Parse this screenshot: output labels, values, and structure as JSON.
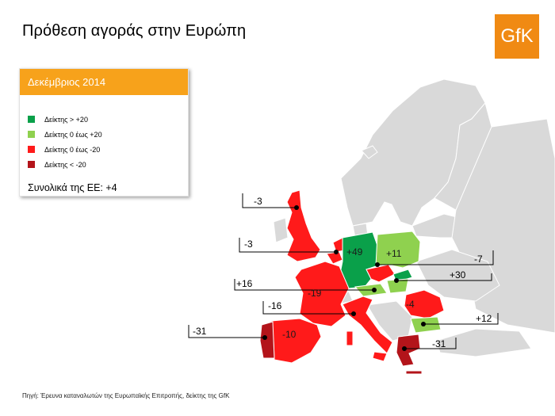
{
  "title": "Πρόθεση αγοράς στην Ευρώπη",
  "logo": "GfK",
  "panel": {
    "heading": "Δεκέμβριος 2014",
    "legend": [
      {
        "label": "Δείκτης  > +20",
        "color": "#0aa04a"
      },
      {
        "label": "Δείκτης  0 έως +20",
        "color": "#8fd14f"
      },
      {
        "label": "Δείκτης  0 έως -20",
        "color": "#ff1a1a"
      },
      {
        "label": "Δείκτης  < -20",
        "color": "#b3141a"
      }
    ],
    "eu_total": "Συνολικά της ΕΕ:  +4"
  },
  "countries": {
    "uk": "-3",
    "belgium": "-3",
    "germany": "+49",
    "poland": "+11",
    "czech": "-7",
    "slovakia": "+30",
    "austria": "+16",
    "france": "-19",
    "italy": "-16",
    "romania": "-4",
    "bulgaria": "+12",
    "spain": "-10",
    "portugal": "-31",
    "greece": "-31"
  },
  "source": "Πηγή: Έρευνα καταναλωτών της  Ευρωπαϊκής Επιτροπής, δείκτης της GfK",
  "colors": {
    "dark_green": "#0aa04a",
    "light_green": "#8fd14f",
    "red": "#ff1a1a",
    "dark_red": "#b3141a",
    "grey": "#d9d9d9",
    "orange": "#f7a21b"
  }
}
